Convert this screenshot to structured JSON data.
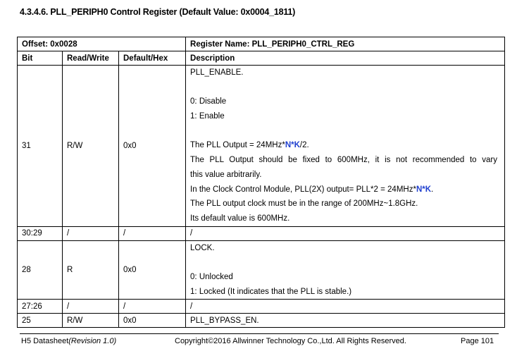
{
  "section_title": "4.3.4.6. PLL_PERIPH0 Control Register (Default Value: 0x0004_1811)",
  "table": {
    "offset": "Offset: 0x0028",
    "register_name": "Register Name: PLL_PERIPH0_CTRL_REG",
    "headers": [
      "Bit",
      "Read/Write",
      "Default/Hex",
      "Description"
    ],
    "rows": [
      {
        "bit": "31",
        "rw": "R/W",
        "default": "0x0",
        "desc": {
          "l0": "PLL_ENABLE.",
          "l1": "0: Disable",
          "l2": "1: Enable",
          "l3a": "The PLL Output = 24MHz*",
          "l3n": "N",
          "l3s": "*",
          "l3k": "K",
          "l3b": "/2.",
          "l4": "The PLL Output should be fixed to 600MHz, it is not recommended to vary",
          "l5": "this value arbitrarily.",
          "l6a": "In the Clock Control Module, PLL(2X) output= PLL*2 = 24MHz*",
          "l6n": "N",
          "l6s": "*",
          "l6k": "K",
          "l6b": ".",
          "l7": "The PLL output clock must be in the range of 200MHz~1.8GHz.",
          "l8": "Its default value is 600MHz."
        }
      },
      {
        "bit": "30:29",
        "rw": "/",
        "default": "/",
        "desc": "/"
      },
      {
        "bit": "28",
        "rw": "R",
        "default": "0x0",
        "desc": {
          "l0": "LOCK.",
          "l1": "0: Unlocked",
          "l2": "1: Locked (It indicates that the PLL is stable.)"
        }
      },
      {
        "bit": "27:26",
        "rw": "/",
        "default": "/",
        "desc": "/"
      },
      {
        "bit": "25",
        "rw": "R/W",
        "default": "0x0",
        "desc": "PLL_BYPASS_EN."
      }
    ]
  },
  "footer": {
    "doc": "H5 Datasheet",
    "revision": "(Revision 1.0)",
    "copyright": "Copyright©2016 Allwinner Technology Co.,Ltd. All Rights Reserved.",
    "page": "Page 101"
  },
  "colors": {
    "highlight": "#1f3fcf"
  }
}
